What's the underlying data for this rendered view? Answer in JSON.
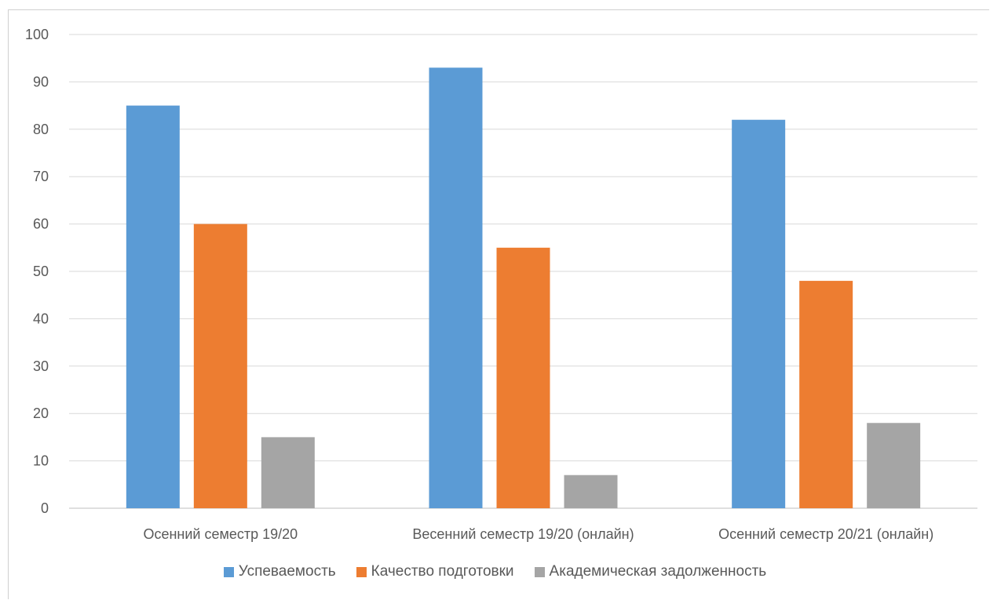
{
  "chart_data": {
    "type": "bar",
    "categories": [
      "Осенний семестр 19/20",
      "Весенний семестр 19/20 (онлайн)",
      "Осенний семестр 20/21 (онлайн)"
    ],
    "series": [
      {
        "name": "Успеваемость",
        "values": [
          85,
          93,
          82
        ],
        "color": "#5b9bd5"
      },
      {
        "name": "Качество подготовки",
        "values": [
          60,
          55,
          48
        ],
        "color": "#ed7d31"
      },
      {
        "name": "Академическая задолженность",
        "values": [
          15,
          7,
          18
        ],
        "color": "#a5a5a5"
      }
    ],
    "yticks": [
      "0",
      "10",
      "20",
      "30",
      "40",
      "50",
      "60",
      "70",
      "80",
      "90",
      "100"
    ],
    "ylim": [
      0,
      100
    ],
    "grid": true,
    "legend_position": "bottom"
  }
}
